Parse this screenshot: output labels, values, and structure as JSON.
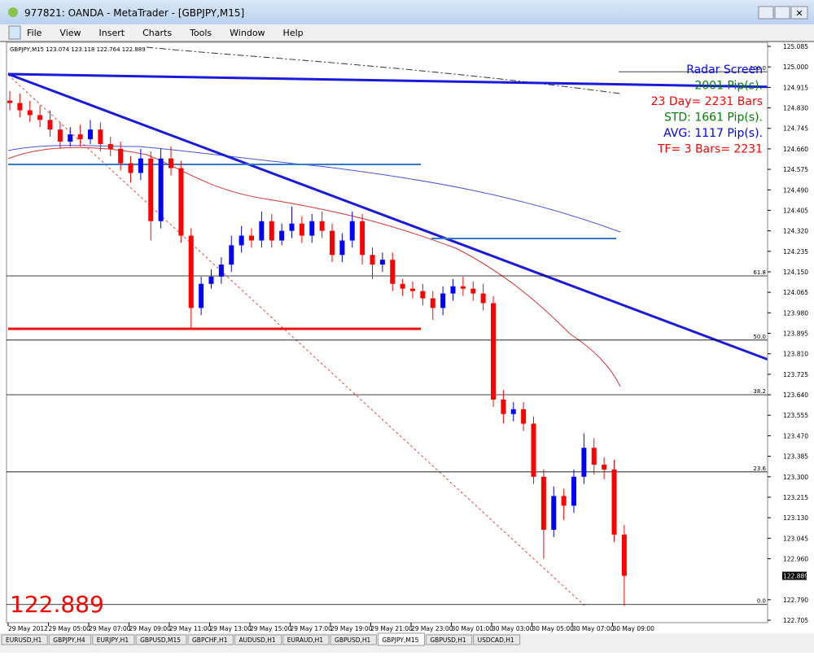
{
  "window": {
    "title": "977821: OANDA - MetaTrader - [GBPJPY,M15]"
  },
  "menu": [
    "File",
    "View",
    "Insert",
    "Charts",
    "Tools",
    "Window",
    "Help"
  ],
  "chart": {
    "info": "GBPJPY,M15  123.074 123.118 122.764 122.889",
    "ylim": [
      122.705,
      125.085
    ],
    "yticks": [
      125.085,
      {
        "value": 125.0,
        "label": "125.000"
      },
      124.915,
      {
        "value": 124.83,
        "label": "124.830"
      },
      124.745,
      {
        "value": 124.66,
        "label": "124.660"
      },
      124.575,
      {
        "value": 124.49,
        "label": "124.490"
      },
      124.405,
      {
        "value": 124.32,
        "label": "124.320"
      },
      124.235,
      {
        "value": 124.15,
        "label": "124.150"
      },
      124.065,
      {
        "value": 123.98,
        "label": "123.980"
      },
      123.895,
      {
        "value": 123.81,
        "label": "123.810"
      },
      123.725,
      {
        "value": 123.64,
        "label": "123.640"
      },
      123.555,
      {
        "value": 123.47,
        "label": "123.470"
      },
      123.385,
      {
        "value": 123.3,
        "label": "123.300"
      },
      123.215,
      {
        "value": 123.13,
        "label": "123.130"
      },
      123.045,
      {
        "value": 122.96,
        "label": "122.960"
      },
      {
        "value": 122.79,
        "label": "122.790"
      },
      122.705
    ],
    "current_price": 122.889,
    "time_labels": [
      "29 May 2012",
      "29 May 05:00",
      "29 May 07:00",
      "29 May 09:00",
      "29 May 11:00",
      "29 May 13:00",
      "29 May 15:00",
      "29 May 17:00",
      "29 May 19:00",
      "29 May 21:00",
      "29 May 23:00",
      "30 May 01:00",
      "30 May 03:00",
      "30 May 05:00",
      "30 May 07:00",
      "30 May 09:00"
    ],
    "candles": {
      "open": [
        124.86,
        124.85,
        124.82,
        124.8,
        124.78,
        124.74,
        124.69,
        124.72,
        124.7,
        124.74,
        124.68,
        124.66,
        124.6,
        124.56,
        124.62,
        124.36,
        124.62,
        124.58,
        124.3,
        124.0,
        124.1,
        124.13,
        124.18,
        124.26,
        124.3,
        124.28,
        124.36,
        124.28,
        124.32,
        124.35,
        124.3,
        124.36,
        124.32,
        124.22,
        124.28,
        124.36,
        124.22,
        124.18,
        124.2,
        124.1,
        124.08,
        124.07,
        124.04,
        124.0,
        124.06,
        124.09,
        124.08,
        124.06,
        124.02,
        123.62,
        123.56,
        123.58,
        123.52,
        123.3,
        123.08,
        123.22,
        123.18,
        123.3,
        123.42,
        123.35,
        123.33,
        123.06
      ],
      "high": [
        124.9,
        124.89,
        124.86,
        124.84,
        124.82,
        124.77,
        124.75,
        124.76,
        124.78,
        124.77,
        124.71,
        124.69,
        124.63,
        124.66,
        124.65,
        124.66,
        124.67,
        124.61,
        124.33,
        124.13,
        124.16,
        124.21,
        124.3,
        124.34,
        124.33,
        124.4,
        124.39,
        124.35,
        124.42,
        124.38,
        124.39,
        124.4,
        124.35,
        124.31,
        124.4,
        124.39,
        124.25,
        124.23,
        124.23,
        124.12,
        124.11,
        124.1,
        124.07,
        124.09,
        124.12,
        124.13,
        124.11,
        124.1,
        124.05,
        123.66,
        123.61,
        123.61,
        123.55,
        123.33,
        123.26,
        123.25,
        123.33,
        123.48,
        123.46,
        123.38,
        123.37,
        123.1
      ],
      "low": [
        124.82,
        124.79,
        124.77,
        124.75,
        124.71,
        124.66,
        124.67,
        124.67,
        124.68,
        124.65,
        124.63,
        124.57,
        124.52,
        124.53,
        124.28,
        124.33,
        124.55,
        124.27,
        123.91,
        123.97,
        124.08,
        124.1,
        124.15,
        124.23,
        124.25,
        124.25,
        124.25,
        124.26,
        124.29,
        124.27,
        124.27,
        124.29,
        124.19,
        124.19,
        124.25,
        124.18,
        124.12,
        124.15,
        124.07,
        124.05,
        124.04,
        124.01,
        123.95,
        123.97,
        124.03,
        124.05,
        124.03,
        123.99,
        123.59,
        123.52,
        123.53,
        123.49,
        123.27,
        122.96,
        123.05,
        123.12,
        123.15,
        123.27,
        123.31,
        123.29,
        123.03,
        122.764
      ],
      "close": [
        124.85,
        124.82,
        124.8,
        124.78,
        124.74,
        124.69,
        124.72,
        124.7,
        124.74,
        124.68,
        124.66,
        124.6,
        124.56,
        124.62,
        124.36,
        124.62,
        124.58,
        124.3,
        124.0,
        124.1,
        124.13,
        124.18,
        124.26,
        124.3,
        124.28,
        124.36,
        124.28,
        124.32,
        124.35,
        124.3,
        124.36,
        124.32,
        124.22,
        124.28,
        124.36,
        124.22,
        124.18,
        124.2,
        124.1,
        124.08,
        124.07,
        124.04,
        124.0,
        124.06,
        124.09,
        124.08,
        124.06,
        124.02,
        123.62,
        123.56,
        123.58,
        123.52,
        123.3,
        123.08,
        123.22,
        123.18,
        123.3,
        123.42,
        123.35,
        123.33,
        123.06,
        122.889
      ]
    },
    "fib_levels": [
      {
        "label": "100.0",
        "price": 124.98
      },
      {
        "label": "61.8",
        "price": 124.133
      },
      {
        "label": "50.0",
        "price": 123.867
      },
      {
        "label": "38.2",
        "price": 123.64
      },
      {
        "label": "23.6",
        "price": 123.32
      },
      {
        "label": "0.0",
        "price": 122.77
      }
    ],
    "radar": [
      {
        "text": "Radar Screen",
        "color": "#0000ff"
      },
      {
        "text": "2001 Pip(s).",
        "color": "#008000"
      },
      {
        "text": "23 Day= 2231 Bars",
        "color": "#ff0000"
      },
      {
        "text": "STD: 1661 Pip(s).",
        "color": "#008000"
      },
      {
        "text": "AVG: 1117 Pip(s).",
        "color": "#0000ff"
      },
      {
        "text": "TF= 3 Bars= 2231",
        "color": "#ff0000"
      }
    ],
    "big_price": "122.889"
  },
  "tabs": [
    "EURUSD,H1",
    "GBPJPY,H4",
    "EURJPY,H1",
    "GBPUSD,M15",
    "GBPCHF,H1",
    "AUDUSD,H1",
    "EURAUD,H1",
    "GBPUSD,H1",
    "GBPJPY,M15",
    "GBPUSD,H1",
    "USDCAD,H1"
  ],
  "active_tab": 8
}
